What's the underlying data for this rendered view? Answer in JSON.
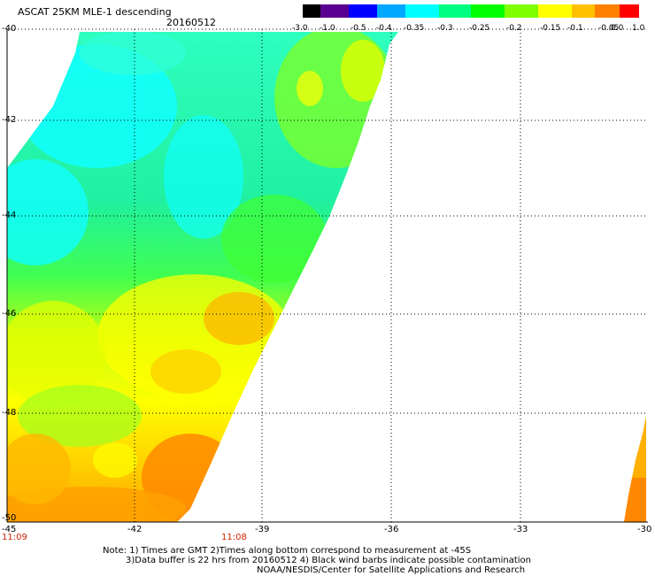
{
  "header": {
    "title": "ASCAT 25KM MLE-1 descending",
    "date": "20160512"
  },
  "colorbar": {
    "labels": [
      "-3.0",
      "-1.0",
      "-0.5",
      "-0.4",
      "-0.35",
      "-0.3",
      "-0.25",
      "-0.2",
      "-0.15",
      "-0.1",
      "-0.05",
      "0.0",
      "1.0"
    ],
    "colors": [
      "#000000",
      "#5a0090",
      "#0000ff",
      "#00a8ff",
      "#00ffff",
      "#00ff80",
      "#00ff00",
      "#80ff00",
      "#ffff00",
      "#ffc000",
      "#ff8000",
      "#ff0000"
    ]
  },
  "axes": {
    "lat_labels": [
      "-40",
      "-42",
      "-44",
      "-46",
      "-48",
      "-50"
    ],
    "lon_labels": [
      "-45",
      "-42",
      "-39",
      "-36",
      "-33",
      "-30"
    ]
  },
  "time_labels": {
    "left": "11:09",
    "right": "11:08"
  },
  "notes": {
    "line1": "Note: 1) Times are GMT 2)Times along bottom correspond to measurement at -45S",
    "line2": "3)Data buffer is 22 hrs from 20160512 4) Black wind barbs indicate possible contamination",
    "line3": "NOAA/NESDIS/Center for Satellite Applications and Research"
  }
}
